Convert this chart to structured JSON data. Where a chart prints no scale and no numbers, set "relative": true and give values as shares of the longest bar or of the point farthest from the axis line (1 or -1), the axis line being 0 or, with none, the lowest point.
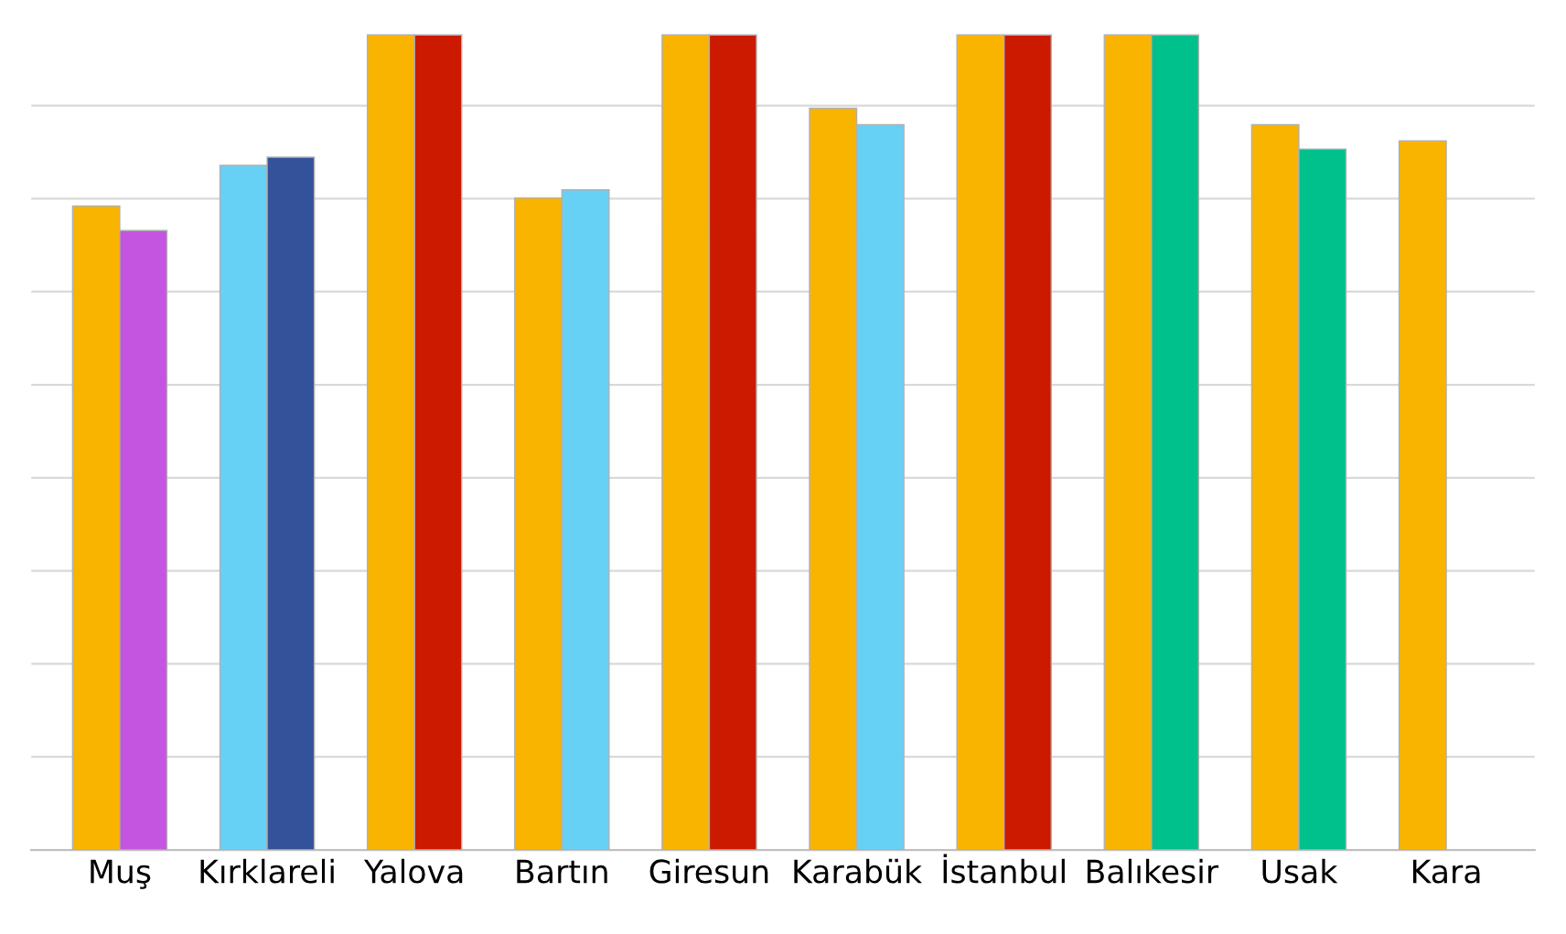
{
  "chart_data": {
    "type": "bar",
    "relative": true,
    "grid": "y",
    "categories": [
      "Muş",
      "Kırklareli",
      "Yalova",
      "Bartın",
      "Giresun",
      "Karabük",
      "İstanbul",
      "Balıkesir",
      "Usak",
      "Kara"
    ],
    "series": [
      {
        "colors": [
          "#f9b400",
          "#66d1f5",
          "#f9b400",
          "#f9b400",
          "#f9b400",
          "#f9b400",
          "#f9b400",
          "#f9b400",
          "#f9b400",
          "#f9b400"
        ],
        "values": [
          0.79,
          0.84,
          1,
          0.8,
          1,
          0.91,
          1,
          1,
          0.89,
          0.87
        ]
      },
      {
        "colors": [
          "#c455e0",
          "#34529a",
          "#cc1a00",
          "#66d1f5",
          "#cc1a00",
          "#66d1f5",
          "#cc1a00",
          "#00c08b",
          "#00c08b",
          null
        ],
        "values": [
          0.76,
          0.85,
          1,
          0.81,
          1,
          0.89,
          1,
          1,
          0.86,
          null
        ]
      }
    ]
  }
}
